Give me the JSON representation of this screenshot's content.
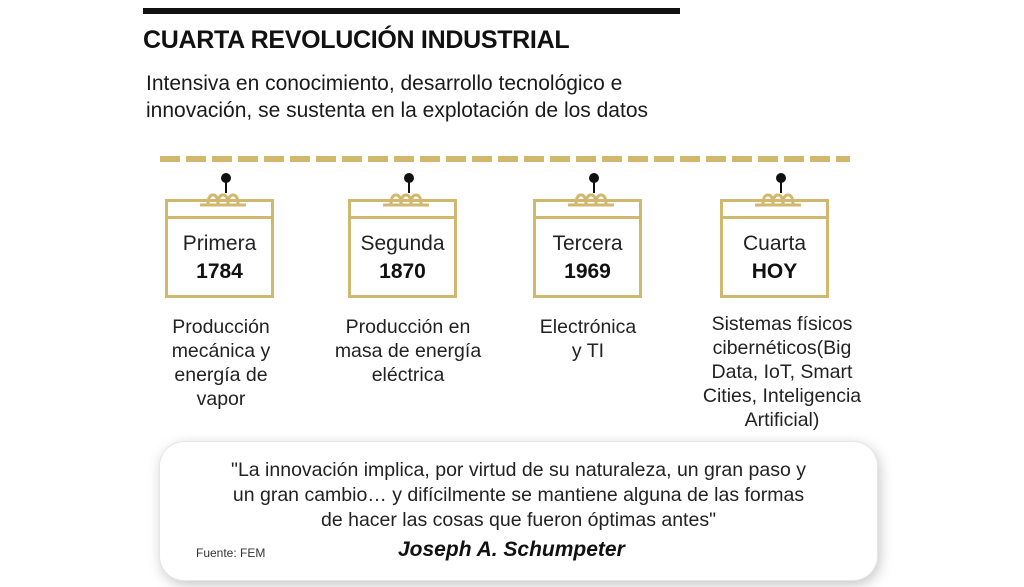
{
  "header": {
    "title": "CUARTA REVOLUCIÓN INDUSTRIAL",
    "subtitle_line1": "Intensiva en conocimiento, desarrollo tecnológico e",
    "subtitle_line2": "innovación, se sustenta en la explotación de los datos"
  },
  "colors": {
    "accent": "#d2b76e",
    "text": "#222222",
    "bar": "#111111"
  },
  "icons": {
    "calendar": "calendar-icon",
    "marker": "timeline-dot-icon"
  },
  "eras": [
    {
      "ordinal": "Primera",
      "year": "1784",
      "desc": [
        "Producción",
        "mecánica y",
        "energía de",
        "vapor"
      ]
    },
    {
      "ordinal": "Segunda",
      "year": "1870",
      "desc": [
        "Producción en",
        "masa de energía",
        "eléctrica"
      ]
    },
    {
      "ordinal": "Tercera",
      "year": "1969",
      "desc": [
        "Electrónica",
        "y TI"
      ]
    },
    {
      "ordinal": "Cuarta",
      "year": "HOY",
      "desc": [
        "Sistemas físicos",
        "cibernéticos(Big",
        "Data, IoT, Smart",
        "Cities, Inteligencia",
        "Artificial)"
      ]
    }
  ],
  "quote": {
    "line1": "\"La innovación implica, por virtud de su naturaleza, un gran paso y",
    "line2": "un gran cambio… y difícilmente se mantiene alguna de las formas",
    "line3": "de hacer las cosas que fueron óptimas antes\"",
    "source": "Fuente: FEM",
    "author": "Joseph A. Schumpeter"
  }
}
